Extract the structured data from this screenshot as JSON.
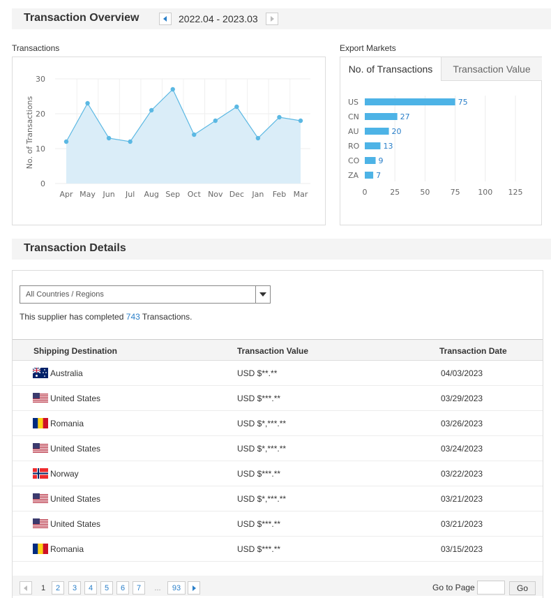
{
  "overview": {
    "title": "Transaction Overview",
    "period": "2022.04 - 2023.03"
  },
  "transactions_chart": {
    "section_label": "Transactions"
  },
  "export_markets": {
    "section_label": "Export Markets",
    "tabs": [
      "No. of Transactions",
      "Transaction Value"
    ]
  },
  "chart_data": [
    {
      "type": "area",
      "categories": [
        "Apr",
        "May",
        "Jun",
        "Jul",
        "Aug",
        "Sep",
        "Oct",
        "Nov",
        "Dec",
        "Jan",
        "Feb",
        "Mar"
      ],
      "values": [
        12,
        23,
        13,
        12,
        21,
        27,
        14,
        18,
        22,
        13,
        19,
        18
      ],
      "title": "Transactions",
      "xlabel": "",
      "ylabel": "No. of Transactions",
      "ylim": [
        0,
        30
      ],
      "yticks": [
        "0",
        "10",
        "20",
        "30"
      ],
      "grid": true,
      "color": "#5bb8e3"
    },
    {
      "type": "bar",
      "orientation": "horizontal",
      "categories": [
        "US",
        "CN",
        "AU",
        "RO",
        "CO",
        "ZA"
      ],
      "values": [
        75,
        27,
        20,
        13,
        9,
        7
      ],
      "xlim": [
        0,
        125
      ],
      "xticks": [
        "0",
        "25",
        "50",
        "75",
        "100",
        "125"
      ],
      "grid": true,
      "color": "#4db3e6"
    }
  ],
  "details": {
    "title": "Transaction Details",
    "filter_value": "All Countries / Regions",
    "summary_prefix": "This supplier has completed",
    "summary_count": "743",
    "summary_suffix": "Transactions.",
    "columns": [
      "Shipping Destination",
      "Transaction Value",
      "Transaction Date"
    ],
    "rows": [
      {
        "country": "Australia",
        "flag": "au",
        "value": "USD $**.**",
        "date": "04/03/2023"
      },
      {
        "country": "United States",
        "flag": "us",
        "value": "USD $***.**",
        "date": "03/29/2023"
      },
      {
        "country": "Romania",
        "flag": "ro",
        "value": "USD $*,***.**",
        "date": "03/26/2023"
      },
      {
        "country": "United States",
        "flag": "us",
        "value": "USD $*,***.**",
        "date": "03/24/2023"
      },
      {
        "country": "Norway",
        "flag": "no",
        "value": "USD $***.**",
        "date": "03/22/2023"
      },
      {
        "country": "United States",
        "flag": "us",
        "value": "USD $*,***.**",
        "date": "03/21/2023"
      },
      {
        "country": "United States",
        "flag": "us",
        "value": "USD $***.**",
        "date": "03/21/2023"
      },
      {
        "country": "Romania",
        "flag": "ro",
        "value": "USD $***.**",
        "date": "03/15/2023"
      }
    ]
  },
  "pagination": {
    "pages": [
      "1",
      "2",
      "3",
      "4",
      "5",
      "6",
      "7",
      "...",
      "93"
    ],
    "current": "1",
    "goto_label": "Go to Page",
    "goto_value": "",
    "go_button": "Go"
  },
  "colors": {
    "accent": "#2a7fc9",
    "chart_line": "#5bb8e3",
    "chart_fill": "#daedf8",
    "bar": "#4db3e6"
  }
}
